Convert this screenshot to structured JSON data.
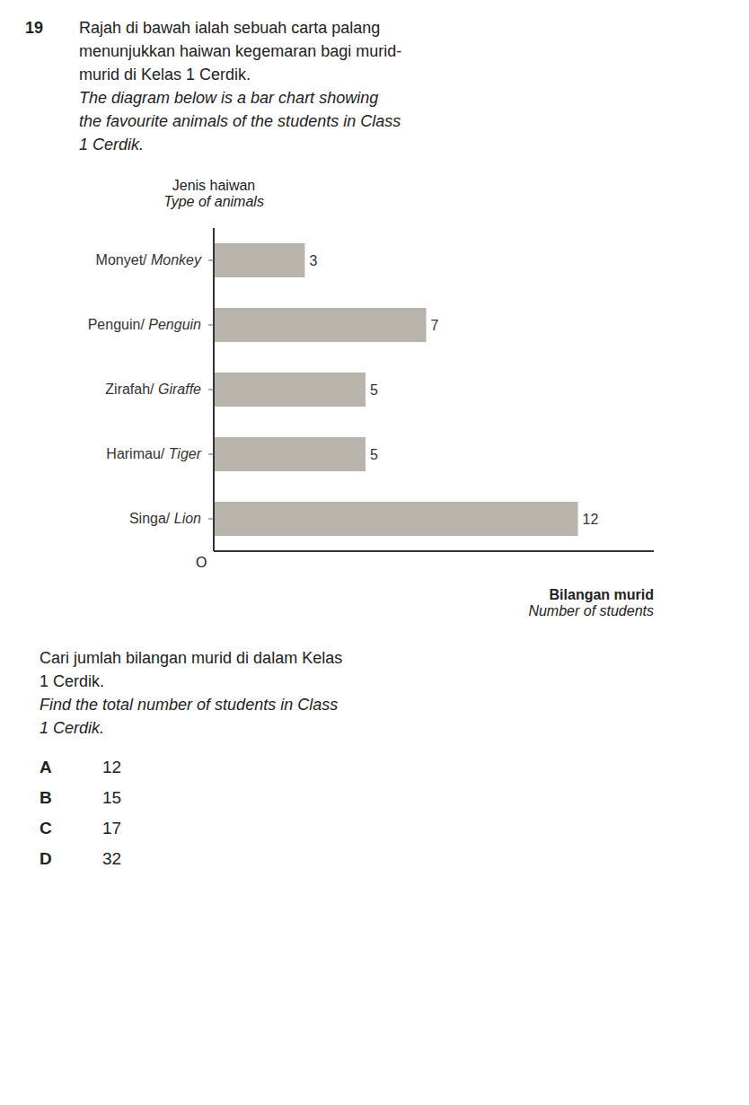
{
  "chart_data": {
    "type": "bar",
    "orientation": "horizontal",
    "title": [
      "Rajah di bawah ialah sebuah carta palang",
      "menunjukkan haiwan kegemaran bagi murid-",
      "murid di Kelas 1 Cerdik."
    ],
    "subtitle": [
      "The diagram below is a bar chart showing",
      "the favourite animals of the students in Class",
      "1 Cerdik."
    ],
    "ylabel": [
      "Jenis haiwan",
      "Type of animals"
    ],
    "xlabel": [
      "Bilangan murid",
      "Number of students"
    ],
    "categories": [
      "Monyet/ Monkey",
      "Penguin/ Penguin",
      "Zirafah/ Giraffe",
      "Harimau/ Tiger",
      "Singa/ Lion"
    ],
    "values": [
      3,
      7,
      5,
      5,
      12
    ],
    "color": "#b8b4ac",
    "xlim": [
      0,
      14.5
    ],
    "xticks": [],
    "grid": false,
    "data_labels": true,
    "tick_labels": "y",
    "annotations": {
      "number": "19",
      "origin": "O",
      "question": [
        "Cari jumlah bilangan murid di dalam Kelas",
        "1 Cerdik."
      ],
      "question_english": [
        "Find the total number of students in Class",
        "1 Cerdik."
      ],
      "options": [
        {
          "letter": "A",
          "text": "12"
        },
        {
          "letter": "B",
          "text": "15"
        },
        {
          "letter": "C",
          "text": "17"
        },
        {
          "letter": "D",
          "text": "32"
        }
      ]
    }
  }
}
